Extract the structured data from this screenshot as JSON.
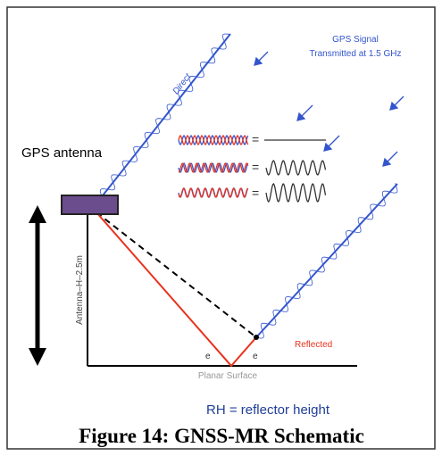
{
  "signal": {
    "line1": "GPS Signal",
    "line2": "Transmitted at 1.5 GHz"
  },
  "rays": {
    "direct": "Direct",
    "reflected": "Reflected"
  },
  "antenna": {
    "label": "GPS antenna",
    "height_label": "Antenna–H–2.5m"
  },
  "surface": "Planar Surface",
  "angles": [
    "e",
    "e"
  ],
  "equations": [
    "=",
    "=",
    "="
  ],
  "note": "RH = reflector height",
  "caption": "Figure 14: GNSS-MR Schematic"
}
